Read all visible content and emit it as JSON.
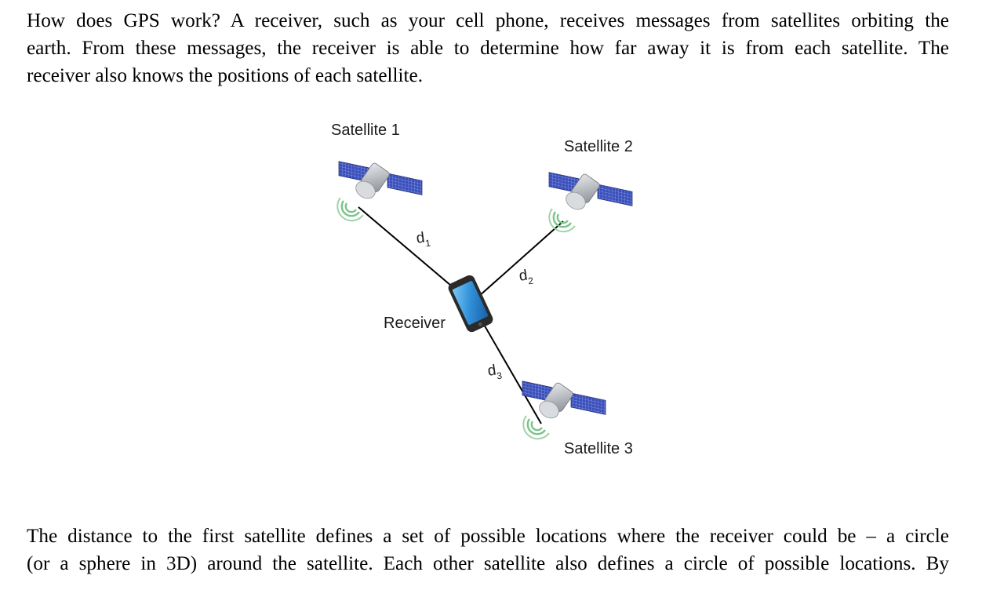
{
  "paragraph1": {
    "lines": [
      "How does GPS work? A receiver, such as your cell phone, receives messages from satellites orbiting the",
      "earth. From these messages, the receiver is able to determine how far away it is from each satellite. The",
      "receiver also knows the positions of each satellite."
    ]
  },
  "figure": {
    "satellite1": "Satellite 1",
    "satellite2": "Satellite 2",
    "satellite3": "Satellite 3",
    "receiver": "Receiver",
    "distances": [
      {
        "letter": "d",
        "sub": "1"
      },
      {
        "letter": "d",
        "sub": "2"
      },
      {
        "letter": "d",
        "sub": "3"
      }
    ]
  },
  "paragraph2": {
    "lines": [
      "The distance to the first satellite defines a set of possible locations where the receiver could be – a circle",
      "(or a sphere in 3D) around the satellite. Each other satellite also defines a circle of possible locations. By"
    ]
  },
  "colors": {
    "panel": "#3a4fb8",
    "body": "#b8bcc2",
    "signal": "#7cc38a",
    "phone": "#2a2a2a",
    "screen": "#2f8fd8"
  }
}
